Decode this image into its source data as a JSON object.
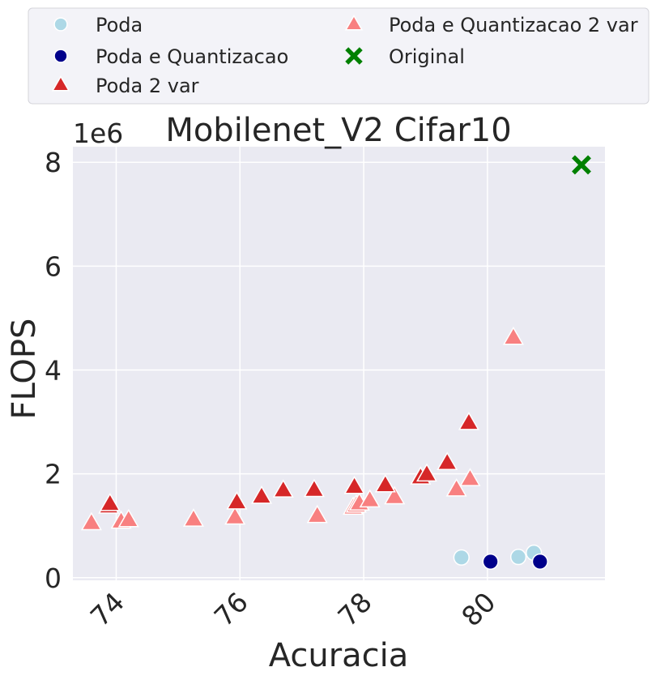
{
  "chart_data": {
    "type": "scatter",
    "title": "Mobilenet_V2 Cifar10",
    "xlabel": "Acuracia",
    "ylabel": "FLOPS",
    "y_scale_label": "1e6",
    "xlim": [
      73.3,
      81.9
    ],
    "ylim": [
      -0.05,
      8.3
    ],
    "x_ticks": [
      74,
      76,
      78,
      80
    ],
    "x_tick_labels": [
      "74",
      "76",
      "78",
      "80"
    ],
    "y_ticks": [
      0,
      2,
      4,
      6,
      8
    ],
    "y_tick_labels": [
      "0",
      "2",
      "4",
      "6",
      "8"
    ],
    "grid": true,
    "legend_position": "top",
    "series": [
      {
        "name": "Poda",
        "marker": "circle",
        "color": "#add8e6",
        "points": [
          [
            79.58,
            0.39
          ],
          [
            80.5,
            0.4
          ],
          [
            80.75,
            0.48
          ]
        ]
      },
      {
        "name": "Poda e Quantizacao",
        "marker": "circle",
        "color": "#00008b",
        "points": [
          [
            80.05,
            0.31
          ],
          [
            80.85,
            0.31
          ]
        ]
      },
      {
        "name": "Poda 2 var",
        "marker": "triangle",
        "color": "#d62728",
        "points": [
          [
            73.88,
            1.37
          ],
          [
            73.9,
            1.42
          ],
          [
            75.95,
            1.45
          ],
          [
            76.35,
            1.56
          ],
          [
            76.7,
            1.68
          ],
          [
            77.2,
            1.69
          ],
          [
            77.85,
            1.75
          ],
          [
            78.35,
            1.78
          ],
          [
            78.92,
            1.93
          ],
          [
            79.02,
            1.99
          ],
          [
            79.35,
            2.21
          ],
          [
            79.7,
            2.98
          ]
        ]
      },
      {
        "name": "Poda e Quantizacao 2 var",
        "marker": "triangle",
        "color": "#f88080",
        "points": [
          [
            73.6,
            1.05
          ],
          [
            74.08,
            1.08
          ],
          [
            74.2,
            1.11
          ],
          [
            75.25,
            1.12
          ],
          [
            75.92,
            1.16
          ],
          [
            77.25,
            1.19
          ],
          [
            77.83,
            1.35
          ],
          [
            77.88,
            1.39
          ],
          [
            77.93,
            1.43
          ],
          [
            78.1,
            1.49
          ],
          [
            78.5,
            1.55
          ],
          [
            79.5,
            1.7
          ],
          [
            79.72,
            1.9
          ],
          [
            80.42,
            4.62
          ]
        ]
      },
      {
        "name": "Original",
        "marker": "x",
        "color": "#008000",
        "points": [
          [
            81.52,
            7.95
          ]
        ]
      }
    ]
  }
}
